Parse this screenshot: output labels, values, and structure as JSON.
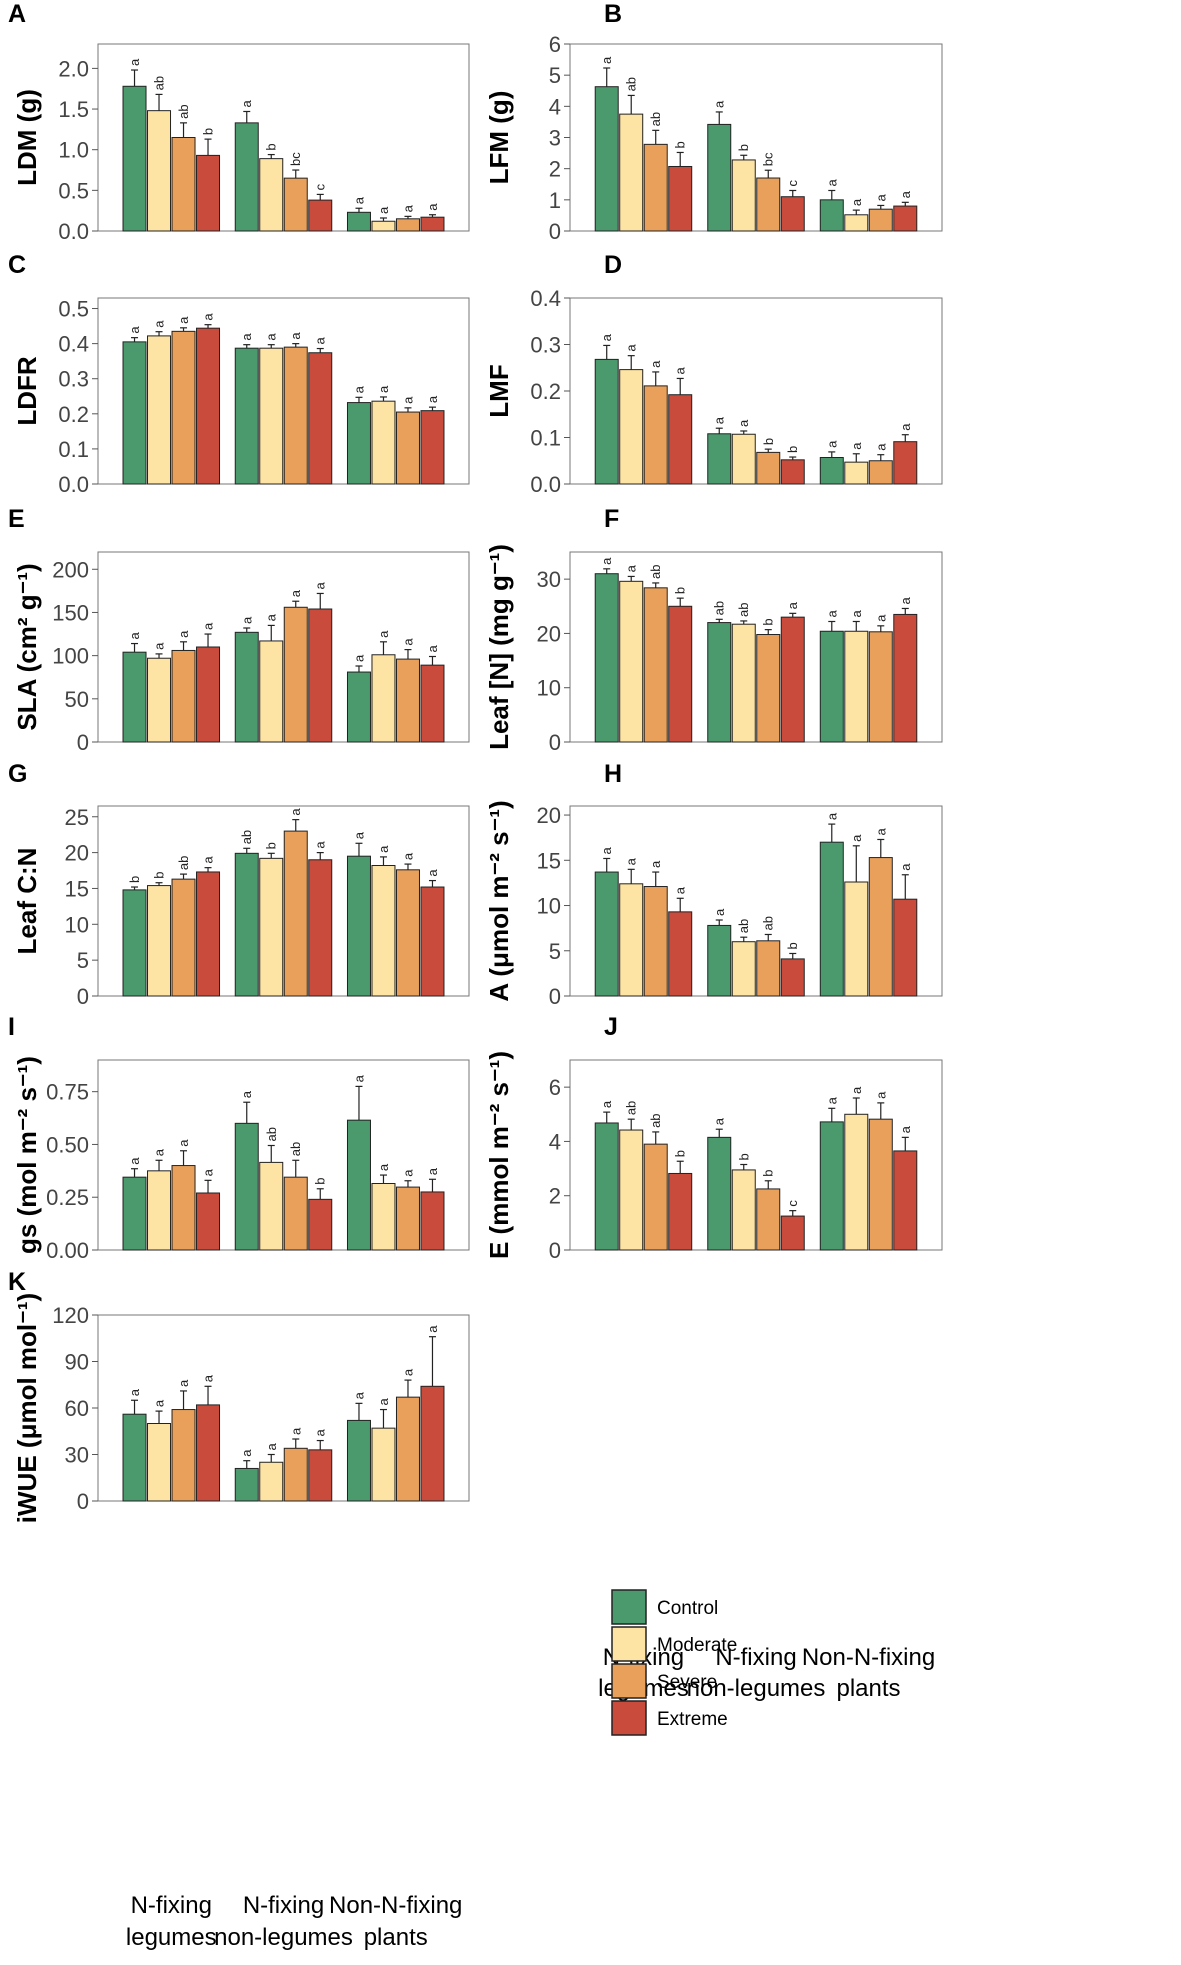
{
  "colors": {
    "Control": "#4a9a6e",
    "Moderate": "#fde4a5",
    "Severe": "#e8a05a",
    "Extreme": "#c84b3c"
  },
  "legend": {
    "items": [
      "Control",
      "Moderate",
      "Severe",
      "Extreme"
    ]
  },
  "x_groups": [
    {
      "line1": "N-fixing",
      "line2": "legumes"
    },
    {
      "line1": "N-fixing",
      "line2": "non-legumes"
    },
    {
      "line1": "Non-N-fixing",
      "line2": "plants"
    }
  ],
  "chart_data": [
    {
      "type": "bar",
      "panel": "A",
      "ylabel": "LDM (g)",
      "ylim": [
        0,
        2.3
      ],
      "yticks": [
        "0.0",
        "0.5",
        "1.0",
        "1.5",
        "2.0"
      ],
      "ytick_values": [
        0,
        0.5,
        1.0,
        1.5,
        2.0
      ],
      "categories": [
        "N-fixing legumes",
        "N-fixing non-legumes",
        "Non-N-fixing plants"
      ],
      "series": [
        {
          "name": "Control",
          "values": [
            1.78,
            1.33,
            0.23
          ],
          "errors": [
            0.2,
            0.14,
            0.05
          ],
          "letters": [
            "a",
            "a",
            "a"
          ]
        },
        {
          "name": "Moderate",
          "values": [
            1.48,
            0.89,
            0.12
          ],
          "errors": [
            0.2,
            0.05,
            0.04
          ],
          "letters": [
            "ab",
            "b",
            "a"
          ]
        },
        {
          "name": "Severe",
          "values": [
            1.15,
            0.65,
            0.15
          ],
          "errors": [
            0.18,
            0.1,
            0.03
          ],
          "letters": [
            "ab",
            "bc",
            "a"
          ]
        },
        {
          "name": "Extreme",
          "values": [
            0.93,
            0.38,
            0.17
          ],
          "errors": [
            0.2,
            0.07,
            0.03
          ],
          "letters": [
            "b",
            "c",
            "a"
          ]
        }
      ]
    },
    {
      "type": "bar",
      "panel": "B",
      "ylabel": "LFM (g)",
      "ylim": [
        0,
        6
      ],
      "yticks": [
        "0",
        "1",
        "2",
        "3",
        "4",
        "5",
        "6"
      ],
      "ytick_values": [
        0,
        1,
        2,
        3,
        4,
        5,
        6
      ],
      "categories": [
        "N-fixing legumes",
        "N-fixing non-legumes",
        "Non-N-fixing plants"
      ],
      "series": [
        {
          "name": "Control",
          "values": [
            4.63,
            3.42,
            1.0
          ],
          "errors": [
            0.6,
            0.4,
            0.3
          ],
          "letters": [
            "a",
            "a",
            "a"
          ]
        },
        {
          "name": "Moderate",
          "values": [
            3.75,
            2.28,
            0.52
          ],
          "errors": [
            0.6,
            0.15,
            0.15
          ],
          "letters": [
            "ab",
            "b",
            "a"
          ]
        },
        {
          "name": "Severe",
          "values": [
            2.78,
            1.7,
            0.7
          ],
          "errors": [
            0.45,
            0.25,
            0.12
          ],
          "letters": [
            "ab",
            "bc",
            "a"
          ]
        },
        {
          "name": "Extreme",
          "values": [
            2.07,
            1.1,
            0.8
          ],
          "errors": [
            0.45,
            0.2,
            0.12
          ],
          "letters": [
            "b",
            "c",
            "a"
          ]
        }
      ]
    },
    {
      "type": "bar",
      "panel": "C",
      "ylabel": "LDFR",
      "ylim": [
        0,
        0.53
      ],
      "yticks": [
        "0.0",
        "0.1",
        "0.2",
        "0.3",
        "0.4",
        "0.5"
      ],
      "ytick_values": [
        0,
        0.1,
        0.2,
        0.3,
        0.4,
        0.5
      ],
      "categories": [
        "N-fixing legumes",
        "N-fixing non-legumes",
        "Non-N-fixing plants"
      ],
      "series": [
        {
          "name": "Control",
          "values": [
            0.405,
            0.387,
            0.232
          ],
          "errors": [
            0.012,
            0.01,
            0.015
          ],
          "letters": [
            "a",
            "a",
            "a"
          ]
        },
        {
          "name": "Moderate",
          "values": [
            0.422,
            0.387,
            0.236
          ],
          "errors": [
            0.012,
            0.01,
            0.012
          ],
          "letters": [
            "a",
            "a",
            "a"
          ]
        },
        {
          "name": "Severe",
          "values": [
            0.435,
            0.39,
            0.205
          ],
          "errors": [
            0.01,
            0.01,
            0.012
          ],
          "letters": [
            "a",
            "a",
            "a"
          ]
        },
        {
          "name": "Extreme",
          "values": [
            0.444,
            0.374,
            0.209
          ],
          "errors": [
            0.01,
            0.012,
            0.01
          ],
          "letters": [
            "a",
            "a",
            "a"
          ]
        }
      ]
    },
    {
      "type": "bar",
      "panel": "D",
      "ylabel": "LMF",
      "ylim": [
        0,
        0.4
      ],
      "yticks": [
        "0.0",
        "0.1",
        "0.2",
        "0.3",
        "0.4"
      ],
      "ytick_values": [
        0,
        0.1,
        0.2,
        0.3,
        0.4
      ],
      "categories": [
        "N-fixing legumes",
        "N-fixing non-legumes",
        "Non-N-fixing plants"
      ],
      "series": [
        {
          "name": "Control",
          "values": [
            0.268,
            0.108,
            0.057
          ],
          "errors": [
            0.03,
            0.012,
            0.012
          ],
          "letters": [
            "a",
            "a",
            "a"
          ]
        },
        {
          "name": "Moderate",
          "values": [
            0.246,
            0.107,
            0.047
          ],
          "errors": [
            0.03,
            0.007,
            0.018
          ],
          "letters": [
            "a",
            "a",
            "a"
          ]
        },
        {
          "name": "Severe",
          "values": [
            0.211,
            0.068,
            0.05
          ],
          "errors": [
            0.03,
            0.007,
            0.013
          ],
          "letters": [
            "a",
            "b",
            "a"
          ]
        },
        {
          "name": "Extreme",
          "values": [
            0.192,
            0.052,
            0.091
          ],
          "errors": [
            0.035,
            0.006,
            0.015
          ],
          "letters": [
            "a",
            "b",
            "a"
          ]
        }
      ]
    },
    {
      "type": "bar",
      "panel": "E",
      "ylabel": "SLA (cm² g⁻¹)",
      "ylim": [
        0,
        220
      ],
      "yticks": [
        "0",
        "50",
        "100",
        "150",
        "200"
      ],
      "ytick_values": [
        0,
        50,
        100,
        150,
        200
      ],
      "categories": [
        "N-fixing legumes",
        "N-fixing non-legumes",
        "Non-N-fixing plants"
      ],
      "series": [
        {
          "name": "Control",
          "values": [
            104,
            127,
            81
          ],
          "errors": [
            10,
            5,
            7
          ],
          "letters": [
            "a",
            "a",
            "a"
          ]
        },
        {
          "name": "Moderate",
          "values": [
            97,
            117,
            101
          ],
          "errors": [
            5,
            18,
            15
          ],
          "letters": [
            "a",
            "a",
            "a"
          ]
        },
        {
          "name": "Severe",
          "values": [
            106,
            156,
            96
          ],
          "errors": [
            10,
            7,
            11
          ],
          "letters": [
            "a",
            "a",
            "a"
          ]
        },
        {
          "name": "Extreme",
          "values": [
            110,
            154,
            89
          ],
          "errors": [
            15,
            18,
            10
          ],
          "letters": [
            "a",
            "a",
            "a"
          ]
        }
      ]
    },
    {
      "type": "bar",
      "panel": "F",
      "ylabel": "Leaf [N] (mg g⁻¹)",
      "ylim": [
        0,
        35
      ],
      "yticks": [
        "0",
        "10",
        "20",
        "30"
      ],
      "ytick_values": [
        0,
        10,
        20,
        30
      ],
      "categories": [
        "N-fixing legumes",
        "N-fixing non-legumes",
        "Non-N-fixing plants"
      ],
      "series": [
        {
          "name": "Control",
          "values": [
            31,
            22,
            20.4
          ],
          "errors": [
            0.9,
            0.6,
            1.8
          ],
          "letters": [
            "a",
            "ab",
            "a"
          ]
        },
        {
          "name": "Moderate",
          "values": [
            29.6,
            21.7,
            20.4
          ],
          "errors": [
            0.9,
            0.6,
            1.8
          ],
          "letters": [
            "a",
            "ab",
            "a"
          ]
        },
        {
          "name": "Severe",
          "values": [
            28.4,
            19.8,
            20.3
          ],
          "errors": [
            0.9,
            0.9,
            1.1
          ],
          "letters": [
            "ab",
            "b",
            "a"
          ]
        },
        {
          "name": "Extreme",
          "values": [
            25,
            23,
            23.5
          ],
          "errors": [
            1.5,
            0.7,
            1.1
          ],
          "letters": [
            "b",
            "a",
            "a"
          ]
        }
      ]
    },
    {
      "type": "bar",
      "panel": "G",
      "ylabel": "Leaf C:N",
      "ylim": [
        0,
        26.5
      ],
      "yticks": [
        "0",
        "5",
        "10",
        "15",
        "20",
        "25"
      ],
      "ytick_values": [
        0,
        5,
        10,
        15,
        20,
        25
      ],
      "categories": [
        "N-fixing legumes",
        "N-fixing non-legumes",
        "Non-N-fixing plants"
      ],
      "series": [
        {
          "name": "Control",
          "values": [
            14.8,
            19.9,
            19.5
          ],
          "errors": [
            0.4,
            0.7,
            1.8
          ],
          "letters": [
            "b",
            "ab",
            "a"
          ]
        },
        {
          "name": "Moderate",
          "values": [
            15.4,
            19.2,
            18.2
          ],
          "errors": [
            0.4,
            0.7,
            1.2
          ],
          "letters": [
            "b",
            "b",
            "a"
          ]
        },
        {
          "name": "Severe",
          "values": [
            16.3,
            23,
            17.6
          ],
          "errors": [
            0.7,
            1.6,
            0.8
          ],
          "letters": [
            "ab",
            "a",
            "a"
          ]
        },
        {
          "name": "Extreme",
          "values": [
            17.3,
            19,
            15.2
          ],
          "errors": [
            0.6,
            1,
            0.9
          ],
          "letters": [
            "a",
            "a",
            "a"
          ]
        }
      ]
    },
    {
      "type": "bar",
      "panel": "H",
      "ylabel": "A (μmol m⁻² s⁻¹)",
      "ylim": [
        0,
        21
      ],
      "yticks": [
        "0",
        "5",
        "10",
        "15",
        "20"
      ],
      "ytick_values": [
        0,
        5,
        10,
        15,
        20
      ],
      "categories": [
        "N-fixing legumes",
        "N-fixing non-legumes",
        "Non-N-fixing plants"
      ],
      "series": [
        {
          "name": "Control",
          "values": [
            13.7,
            7.8,
            17
          ],
          "errors": [
            1.5,
            0.6,
            2
          ],
          "letters": [
            "a",
            "a",
            "a"
          ]
        },
        {
          "name": "Moderate",
          "values": [
            12.4,
            6,
            12.6
          ],
          "errors": [
            1.6,
            0.5,
            4
          ],
          "letters": [
            "a",
            "ab",
            "a"
          ]
        },
        {
          "name": "Severe",
          "values": [
            12.1,
            6.1,
            15.3
          ],
          "errors": [
            1.6,
            0.7,
            2
          ],
          "letters": [
            "a",
            "ab",
            "a"
          ]
        },
        {
          "name": "Extreme",
          "values": [
            9.3,
            4.1,
            10.7
          ],
          "errors": [
            1.5,
            0.6,
            2.7
          ],
          "letters": [
            "a",
            "b",
            "a"
          ]
        }
      ]
    },
    {
      "type": "bar",
      "panel": "I",
      "ylabel": "gs (mol m⁻² s⁻¹)",
      "ylim": [
        0,
        0.9
      ],
      "yticks": [
        "0.00",
        "0.25",
        "0.50",
        "0.75"
      ],
      "ytick_values": [
        0,
        0.25,
        0.5,
        0.75
      ],
      "categories": [
        "N-fixing legumes",
        "N-fixing non-legumes",
        "Non-N-fixing plants"
      ],
      "series": [
        {
          "name": "Control",
          "values": [
            0.345,
            0.6,
            0.615
          ],
          "errors": [
            0.04,
            0.1,
            0.16
          ],
          "letters": [
            "a",
            "a",
            "a"
          ]
        },
        {
          "name": "Moderate",
          "values": [
            0.375,
            0.415,
            0.315
          ],
          "errors": [
            0.05,
            0.08,
            0.04
          ],
          "letters": [
            "a",
            "ab",
            "a"
          ]
        },
        {
          "name": "Severe",
          "values": [
            0.4,
            0.345,
            0.298
          ],
          "errors": [
            0.07,
            0.08,
            0.03
          ],
          "letters": [
            "a",
            "ab",
            "a"
          ]
        },
        {
          "name": "Extreme",
          "values": [
            0.27,
            0.24,
            0.275
          ],
          "errors": [
            0.06,
            0.05,
            0.06
          ],
          "letters": [
            "a",
            "b",
            "a"
          ]
        }
      ]
    },
    {
      "type": "bar",
      "panel": "J",
      "ylabel": "E (mmol m⁻² s⁻¹)",
      "ylim": [
        0,
        7
      ],
      "yticks": [
        "0",
        "2",
        "4",
        "6"
      ],
      "ytick_values": [
        0,
        2,
        4,
        6
      ],
      "categories": [
        "N-fixing legumes",
        "N-fixing non-legumes",
        "Non-N-fixing plants"
      ],
      "series": [
        {
          "name": "Control",
          "values": [
            4.68,
            4.15,
            4.72
          ],
          "errors": [
            0.4,
            0.3,
            0.5
          ],
          "letters": [
            "a",
            "a",
            "a"
          ]
        },
        {
          "name": "Moderate",
          "values": [
            4.42,
            2.95,
            5
          ],
          "errors": [
            0.4,
            0.2,
            0.6
          ],
          "letters": [
            "ab",
            "b",
            "a"
          ]
        },
        {
          "name": "Severe",
          "values": [
            3.9,
            2.25,
            4.82
          ],
          "errors": [
            0.45,
            0.3,
            0.6
          ],
          "letters": [
            "ab",
            "b",
            "a"
          ]
        },
        {
          "name": "Extreme",
          "values": [
            2.82,
            1.25,
            3.65
          ],
          "errors": [
            0.45,
            0.2,
            0.5
          ],
          "letters": [
            "b",
            "c",
            "a"
          ]
        }
      ]
    },
    {
      "type": "bar",
      "panel": "K",
      "ylabel": "iWUE (μmol mol⁻¹)",
      "ylim": [
        0,
        120
      ],
      "yticks": [
        "0",
        "30",
        "60",
        "90",
        "120"
      ],
      "ytick_values": [
        0,
        30,
        60,
        90,
        120
      ],
      "categories": [
        "N-fixing legumes",
        "N-fixing non-legumes",
        "Non-N-fixing plants"
      ],
      "series": [
        {
          "name": "Control",
          "values": [
            56,
            21,
            52
          ],
          "errors": [
            9,
            5,
            11
          ],
          "letters": [
            "a",
            "a",
            "a"
          ]
        },
        {
          "name": "Moderate",
          "values": [
            50,
            25,
            47
          ],
          "errors": [
            8,
            5,
            12
          ],
          "letters": [
            "a",
            "a",
            "a"
          ]
        },
        {
          "name": "Severe",
          "values": [
            59,
            34,
            67
          ],
          "errors": [
            12,
            6,
            11
          ],
          "letters": [
            "a",
            "a",
            "a"
          ]
        },
        {
          "name": "Extreme",
          "values": [
            62,
            33,
            74
          ],
          "errors": [
            12,
            6,
            32
          ],
          "letters": [
            "a",
            "a",
            "a"
          ]
        }
      ]
    }
  ]
}
